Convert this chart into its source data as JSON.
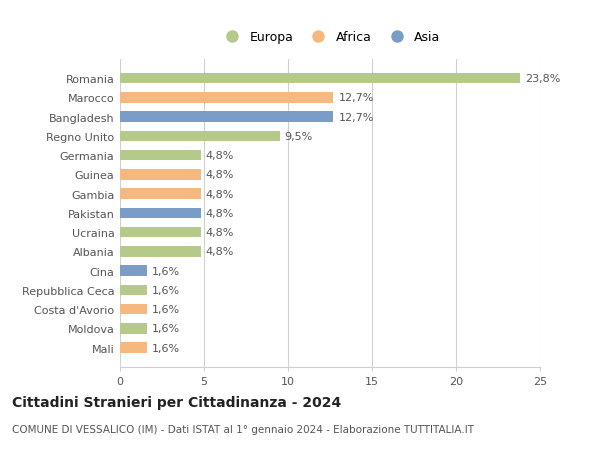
{
  "categories": [
    "Romania",
    "Marocco",
    "Bangladesh",
    "Regno Unito",
    "Germania",
    "Guinea",
    "Gambia",
    "Pakistan",
    "Ucraina",
    "Albania",
    "Cina",
    "Repubblica Ceca",
    "Costa d'Avorio",
    "Moldova",
    "Mali"
  ],
  "values": [
    23.8,
    12.7,
    12.7,
    9.5,
    4.8,
    4.8,
    4.8,
    4.8,
    4.8,
    4.8,
    1.6,
    1.6,
    1.6,
    1.6,
    1.6
  ],
  "labels": [
    "23,8%",
    "12,7%",
    "12,7%",
    "9,5%",
    "4,8%",
    "4,8%",
    "4,8%",
    "4,8%",
    "4,8%",
    "4,8%",
    "1,6%",
    "1,6%",
    "1,6%",
    "1,6%",
    "1,6%"
  ],
  "continents": [
    "Europa",
    "Africa",
    "Asia",
    "Europa",
    "Europa",
    "Africa",
    "Africa",
    "Asia",
    "Europa",
    "Europa",
    "Asia",
    "Europa",
    "Africa",
    "Europa",
    "Africa"
  ],
  "colors": {
    "Europa": "#b5c98a",
    "Africa": "#f5b97f",
    "Asia": "#7a9dc8"
  },
  "xlim": [
    0,
    25
  ],
  "xticks": [
    0,
    5,
    10,
    15,
    20,
    25
  ],
  "title": "Cittadini Stranieri per Cittadinanza - 2024",
  "subtitle": "COMUNE DI VESSALICO (IM) - Dati ISTAT al 1° gennaio 2024 - Elaborazione TUTTITALIA.IT",
  "bg_color": "#ffffff",
  "grid_color": "#d0d0d0",
  "bar_height": 0.55,
  "title_fontsize": 10,
  "subtitle_fontsize": 7.5,
  "tick_fontsize": 8,
  "label_fontsize": 8
}
